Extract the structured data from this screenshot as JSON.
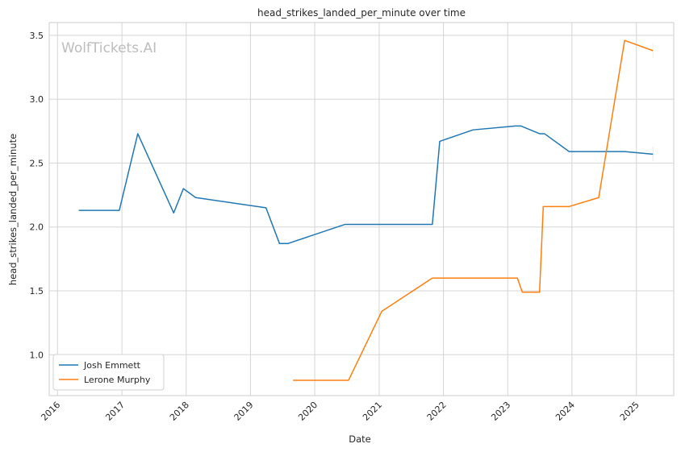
{
  "chart_data": {
    "type": "line",
    "title": "head_strikes_landed_per_minute over time",
    "xlabel": "Date",
    "ylabel": "head_strikes_landed_per_minute",
    "watermark": "WolfTickets.AI",
    "x_ticks": [
      "2016",
      "2017",
      "2018",
      "2019",
      "2020",
      "2021",
      "2022",
      "2023",
      "2024",
      "2025"
    ],
    "y_ticks": [
      "1.0",
      "1.5",
      "2.0",
      "2.5",
      "3.0",
      "3.5"
    ],
    "ylim": [
      0.68,
      3.6
    ],
    "xlim": [
      "2015-11-15",
      "2025-08-01"
    ],
    "grid": true,
    "legend_position": "lower-left",
    "series": [
      {
        "name": "Josh Emmett",
        "color": "#1f77b4",
        "points": [
          [
            "2016-05-01",
            2.13
          ],
          [
            "2016-12-17",
            2.13
          ],
          [
            "2017-04-01",
            2.73
          ],
          [
            "2017-10-22",
            2.11
          ],
          [
            "2017-12-16",
            2.3
          ],
          [
            "2018-02-24",
            2.23
          ],
          [
            "2019-03-30",
            2.15
          ],
          [
            "2019-06-15",
            1.87
          ],
          [
            "2019-08-01",
            1.87
          ],
          [
            "2020-06-20",
            2.02
          ],
          [
            "2021-10-30",
            2.02
          ],
          [
            "2021-12-11",
            2.67
          ],
          [
            "2022-06-18",
            2.76
          ],
          [
            "2023-02-11",
            2.79
          ],
          [
            "2023-03-18",
            2.79
          ],
          [
            "2023-07-01",
            2.73
          ],
          [
            "2023-07-29",
            2.73
          ],
          [
            "2023-12-16",
            2.59
          ],
          [
            "2024-10-26",
            2.59
          ],
          [
            "2025-04-05",
            2.57
          ]
        ]
      },
      {
        "name": "Lerone Murphy",
        "color": "#ff7f0e",
        "points": [
          [
            "2019-08-31",
            0.8
          ],
          [
            "2020-07-11",
            0.8
          ],
          [
            "2021-01-16",
            1.34
          ],
          [
            "2021-10-30",
            1.6
          ],
          [
            "2023-02-25",
            1.6
          ],
          [
            "2023-03-25",
            1.49
          ],
          [
            "2023-07-01",
            1.49
          ],
          [
            "2023-07-22",
            2.16
          ],
          [
            "2023-12-16",
            2.16
          ],
          [
            "2024-06-01",
            2.23
          ],
          [
            "2024-10-26",
            3.46
          ],
          [
            "2025-04-05",
            3.38
          ]
        ]
      }
    ]
  }
}
